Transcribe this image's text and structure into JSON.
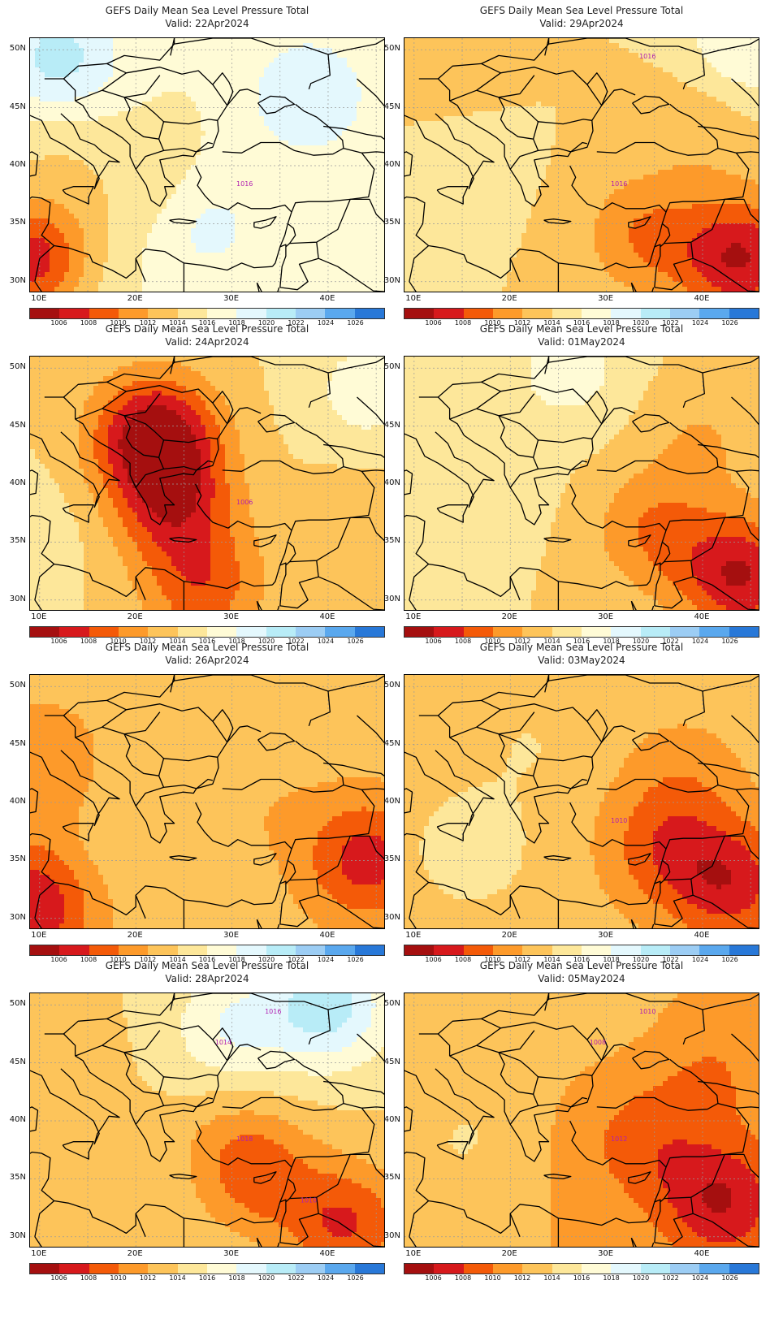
{
  "colorbar": {
    "levels": [
      "1006",
      "1008",
      "1010",
      "1012",
      "1014",
      "1016",
      "1018",
      "1020",
      "1022",
      "1024",
      "1026"
    ],
    "colors": [
      "#a50f0f",
      "#d7191c",
      "#f45a08",
      "#fd9a2a",
      "#fdc45a",
      "#fde79a",
      "#fffbd6",
      "#e4f8fd",
      "#b8ecf7",
      "#9ccdf4",
      "#5aa8ee",
      "#2878d8"
    ]
  },
  "axes": {
    "lat_labels": [
      "50N",
      "45N",
      "40N",
      "35N",
      "30N"
    ],
    "lon_labels": [
      "10E",
      "20E",
      "30E",
      "40E"
    ]
  },
  "panels": [
    {
      "title": "GEFS Daily Mean Sea Level Pressure Total",
      "valid": "Valid: 22Apr2024",
      "base_level": 1016,
      "centers": [
        [
          9,
          32,
          -9
        ],
        [
          22,
          38,
          -2
        ],
        [
          27,
          35,
          3
        ],
        [
          38,
          46,
          4
        ],
        [
          12,
          49,
          5
        ],
        [
          12,
          42,
          -2
        ]
      ],
      "contour_labels": [
        "1016"
      ]
    },
    {
      "title": "GEFS Daily Mean Sea Level Pressure Total",
      "valid": "Valid: 29Apr2024",
      "base_level": 1014,
      "centers": [
        [
          44,
          32,
          -8
        ],
        [
          34,
          34,
          -4
        ],
        [
          40,
          44,
          -2
        ],
        [
          44,
          50,
          4
        ],
        [
          12,
          50,
          -2
        ],
        [
          14,
          40,
          1
        ]
      ],
      "contour_labels": [
        "1016",
        "1016"
      ]
    },
    {
      "title": "GEFS Daily Mean Sea Level Pressure Total",
      "valid": "Valid: 24Apr2024",
      "base_level": 1014,
      "centers": [
        [
          22,
          44,
          -10
        ],
        [
          24,
          38,
          -6
        ],
        [
          27,
          31,
          -5
        ],
        [
          44,
          36,
          -2
        ],
        [
          10,
          36,
          1
        ],
        [
          44,
          48,
          3
        ]
      ],
      "contour_labels": [
        "1006"
      ]
    },
    {
      "title": "GEFS Daily Mean Sea Level Pressure Total",
      "valid": "Valid: 01May2024",
      "base_level": 1014,
      "centers": [
        [
          44,
          32,
          -8
        ],
        [
          35,
          36,
          -4
        ],
        [
          40,
          44,
          -2
        ],
        [
          26,
          50,
          3
        ],
        [
          18,
          40,
          1
        ]
      ],
      "contour_labels": []
    },
    {
      "title": "GEFS Daily Mean Sea Level Pressure Total",
      "valid": "Valid: 26Apr2024",
      "base_level": 1013,
      "centers": [
        [
          9,
          31,
          -7
        ],
        [
          44,
          35,
          -6
        ],
        [
          33,
          40,
          -1
        ],
        [
          28,
          44,
          1
        ],
        [
          19,
          38,
          1
        ],
        [
          10,
          43,
          -3
        ]
      ],
      "contour_labels": []
    },
    {
      "title": "GEFS Daily Mean Sea Level Pressure Total",
      "valid": "Valid: 03May2024",
      "base_level": 1013,
      "centers": [
        [
          43,
          33,
          -6
        ],
        [
          36,
          36,
          -4
        ],
        [
          38,
          42,
          -2
        ],
        [
          16,
          36,
          2
        ],
        [
          22,
          45,
          1
        ]
      ],
      "contour_labels": [
        "1010"
      ]
    },
    {
      "title": "GEFS Daily Mean Sea Level Pressure Total",
      "valid": "Valid: 28Apr2024",
      "base_level": 1014,
      "centers": [
        [
          42,
          31,
          -6
        ],
        [
          33,
          35,
          -4
        ],
        [
          30,
          38,
          -2
        ],
        [
          40,
          50,
          7
        ],
        [
          30,
          48,
          4
        ],
        [
          12,
          45,
          -1
        ]
      ],
      "contour_labels": [
        "1018",
        "1016",
        "1014",
        "1010"
      ]
    },
    {
      "title": "GEFS Daily Mean Sea Level Pressure Total",
      "valid": "Valid: 05May2024",
      "base_level": 1012,
      "centers": [
        [
          42,
          33,
          -6
        ],
        [
          34,
          38,
          -3
        ],
        [
          41,
          44,
          -2
        ],
        [
          15,
          38,
          2
        ],
        [
          18,
          46,
          1
        ],
        [
          30,
          51,
          1
        ]
      ],
      "contour_labels": [
        "1012",
        "1010",
        "1008"
      ]
    }
  ]
}
